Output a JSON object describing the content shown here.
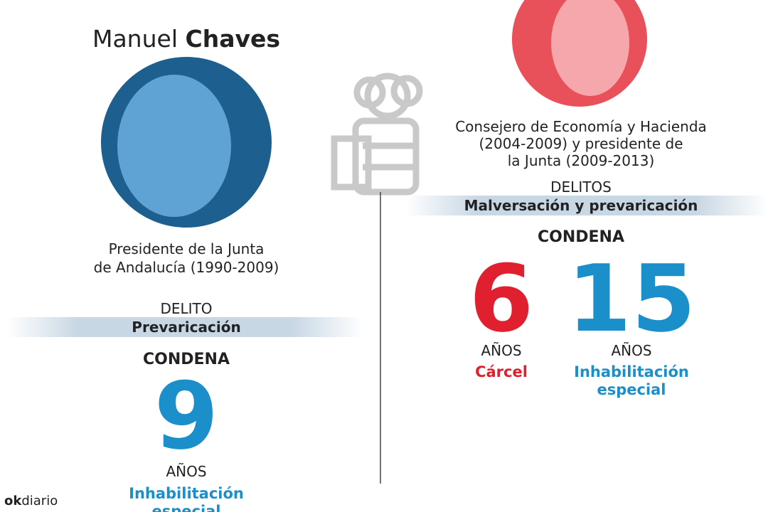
{
  "left": {
    "name_first": "Manuel",
    "name_last": "Chaves",
    "role_lines": [
      "Presidente de la Junta",
      "de Andalucía (1990-2009)"
    ],
    "crime_label": "DELITO",
    "crime": "Prevaricación",
    "sentence_label": "CONDENA",
    "penalties": [
      {
        "number": 9,
        "unit": "AÑOS",
        "type_lines": [
          "Inhabilitación",
          "especial"
        ]
      }
    ]
  },
  "right": {
    "role_lines": [
      "Consejero de Economía y Hacienda",
      "(2004-2009) y presidente de",
      "la Junta (2009-2013)"
    ],
    "crime_label": "DELITOS",
    "crime": "Malversación y prevaricación",
    "sentence_label": "CONDENA",
    "penalties": [
      {
        "number": 6,
        "unit": "AÑOS",
        "type_lines": [
          "Cárcel"
        ]
      },
      {
        "number": 15,
        "unit": "AÑOS",
        "type_lines": [
          "Inhabilitación",
          "especial"
        ]
      }
    ]
  },
  "logo": {
    "ok": "ok",
    "diario": "diario"
  }
}
